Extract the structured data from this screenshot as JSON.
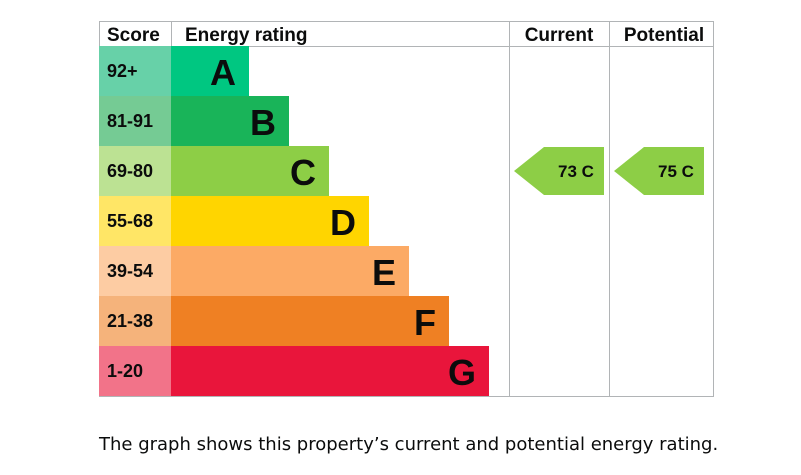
{
  "chart_data": {
    "type": "bar",
    "headers": {
      "score": "Score",
      "energy_rating": "Energy rating",
      "current": "Current",
      "potential": "Potential"
    },
    "bands": [
      {
        "letter": "A",
        "range": "92+",
        "color": "#00c781",
        "score_bg": "#67d1a8"
      },
      {
        "letter": "B",
        "range": "81-91",
        "color": "#19b459",
        "score_bg": "#75cb94"
      },
      {
        "letter": "C",
        "range": "69-80",
        "color": "#8dce46",
        "score_bg": "#bce293"
      },
      {
        "letter": "D",
        "range": "55-68",
        "color": "#ffd500",
        "score_bg": "#ffe666"
      },
      {
        "letter": "E",
        "range": "39-54",
        "color": "#fcaa65",
        "score_bg": "#fdcca3"
      },
      {
        "letter": "F",
        "range": "21-38",
        "color": "#ef8023",
        "score_bg": "#f5b37b"
      },
      {
        "letter": "G",
        "range": "1-20",
        "color": "#e9153b",
        "score_bg": "#f27389"
      }
    ],
    "current": {
      "value": 73,
      "band": "C",
      "label": "73 C",
      "color": "#8dce46"
    },
    "potential": {
      "value": 75,
      "band": "C",
      "label": "75 C",
      "color": "#8dce46"
    }
  },
  "caption": "The graph shows this property’s current and potential energy rating."
}
